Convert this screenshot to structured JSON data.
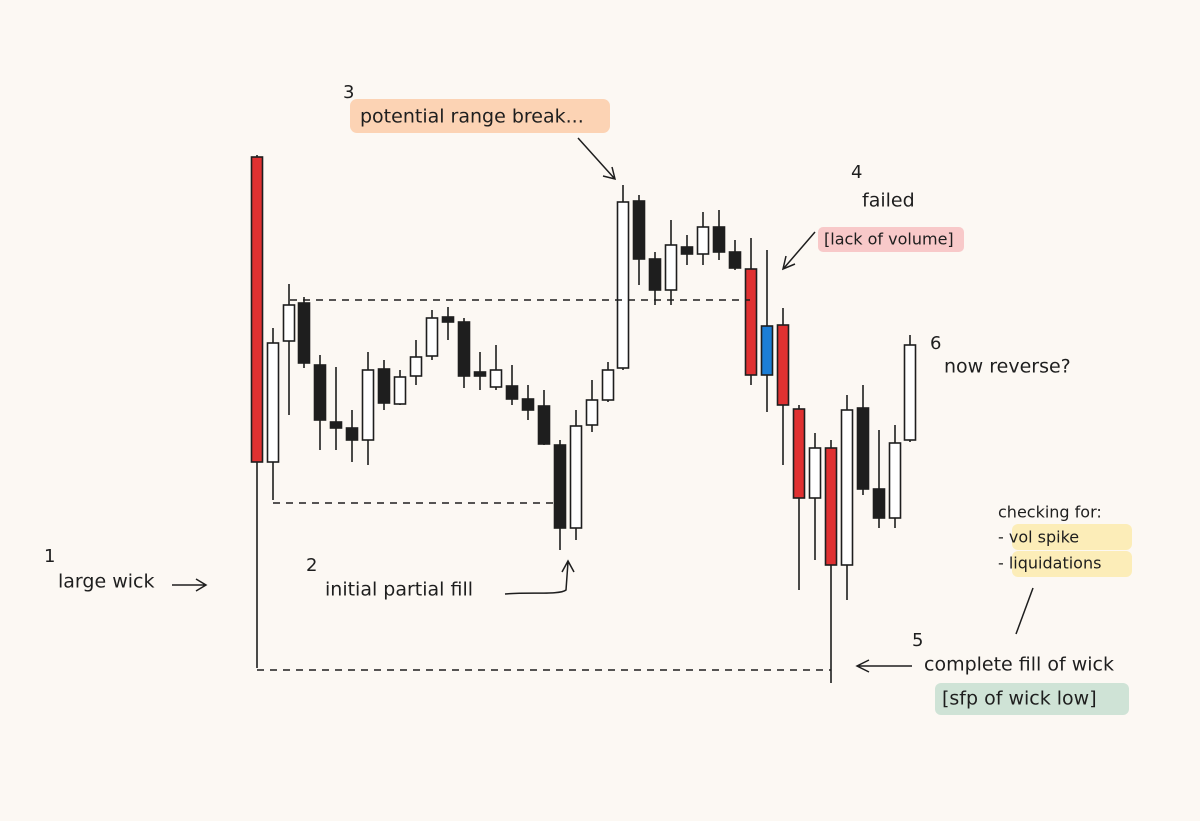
{
  "annotations": [
    {
      "number": "1",
      "label": "large wick"
    },
    {
      "number": "2",
      "label": "initial partial fill"
    },
    {
      "number": "3",
      "label": "potential range break..."
    },
    {
      "number": "4",
      "label": "failed",
      "note": "[lack of volume]"
    },
    {
      "number": "5",
      "label": "complete fill of wick",
      "note": "[sfp of wick low]"
    },
    {
      "number": "6",
      "label": "now reverse?"
    }
  ],
  "checklist": {
    "title": "checking for:",
    "items": [
      "- vol spike",
      "- liquidations"
    ]
  }
}
